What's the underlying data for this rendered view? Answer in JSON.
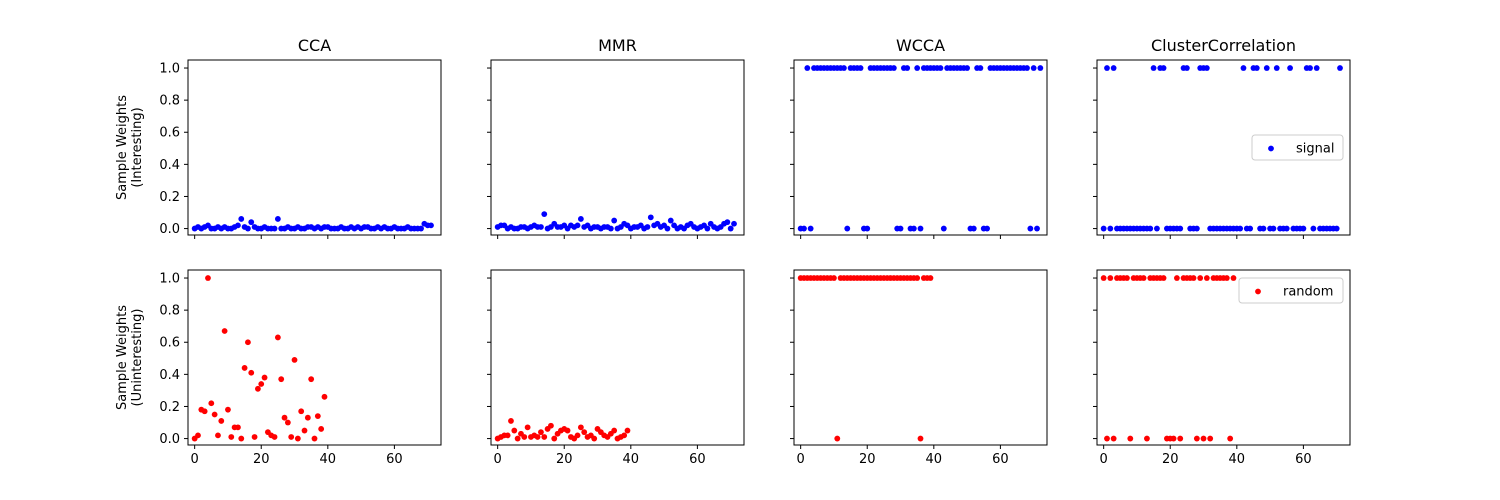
{
  "chart_data": {
    "type": "scatter",
    "titles": [
      "CCA",
      "MMR",
      "WCCA",
      "ClusterCorrelation"
    ],
    "row_ylabels": [
      [
        "Sample Weights",
        "(Interesting)"
      ],
      [
        "Sample Weights",
        "(Uninteresting)"
      ]
    ],
    "xlim": [
      -2,
      74
    ],
    "ylim": [
      -0.04,
      1.05
    ],
    "xticks": [
      0,
      20,
      40,
      60
    ],
    "yticks": [
      0.0,
      0.2,
      0.4,
      0.6,
      0.8,
      1.0
    ],
    "ytick_labels": [
      "0.0",
      "0.2",
      "0.4",
      "0.6",
      "0.8",
      "1.0"
    ],
    "legend": {
      "signal": {
        "label": "signal",
        "color": "#0000ff",
        "placement": "center-right"
      },
      "random": {
        "label": "random",
        "color": "#ff0000",
        "placement": "upper-right"
      }
    },
    "rows": [
      {
        "name": "signal",
        "color": "#0000ff",
        "panels": [
          {
            "title": "CCA",
            "x_start": 0,
            "values": [
              0.0,
              0.01,
              0.0,
              0.01,
              0.02,
              0.0,
              0.0,
              0.01,
              0.0,
              0.01,
              0.0,
              0.0,
              0.01,
              0.02,
              0.06,
              0.01,
              0.0,
              0.04,
              0.01,
              0.0,
              0.0,
              0.01,
              0.0,
              0.0,
              0.0,
              0.06,
              0.0,
              0.0,
              0.01,
              0.0,
              0.0,
              0.01,
              0.0,
              0.0,
              0.01,
              0.01,
              0.0,
              0.01,
              0.0,
              0.01,
              0.01,
              0.0,
              0.0,
              0.0,
              0.01,
              0.0,
              0.0,
              0.01,
              0.0,
              0.01,
              0.0,
              0.01,
              0.01,
              0.0,
              0.0,
              0.01,
              0.0,
              0.01,
              0.0,
              0.0,
              0.01,
              0.0,
              0.0,
              0.0,
              0.01,
              0.0,
              0.0,
              0.0,
              0.0,
              0.03,
              0.02,
              0.02
            ]
          },
          {
            "title": "MMR",
            "x_start": 0,
            "values": [
              0.01,
              0.02,
              0.02,
              0.0,
              0.01,
              0.0,
              0.0,
              0.01,
              0.01,
              0.0,
              0.01,
              0.02,
              0.01,
              0.01,
              0.09,
              0.0,
              0.01,
              0.03,
              0.01,
              0.01,
              0.02,
              0.0,
              0.02,
              0.01,
              0.02,
              0.06,
              0.01,
              0.02,
              0.0,
              0.01,
              0.01,
              0.0,
              0.01,
              0.01,
              0.0,
              0.05,
              0.0,
              0.01,
              0.03,
              0.02,
              0.0,
              0.01,
              0.01,
              0.02,
              0.0,
              0.01,
              0.07,
              0.02,
              0.03,
              0.01,
              0.02,
              0.0,
              0.05,
              0.02,
              0.0,
              0.01,
              0.0,
              0.02,
              0.03,
              0.01,
              0.0,
              0.01,
              0.02,
              0.0,
              0.03,
              0.01,
              0.0,
              0.01,
              0.03,
              0.04,
              0.0,
              0.03
            ]
          },
          {
            "title": "WCCA",
            "x_start": 0,
            "values": [
              0,
              0,
              1,
              0,
              1,
              1,
              1,
              1,
              1,
              1,
              1,
              1,
              1,
              1,
              0,
              1,
              1,
              1,
              1,
              0,
              0,
              1,
              1,
              1,
              1,
              1,
              1,
              1,
              1,
              0,
              0,
              1,
              1,
              0,
              0,
              1,
              0,
              1,
              1,
              1,
              1,
              1,
              1,
              0,
              1,
              1,
              1,
              1,
              1,
              1,
              1,
              0,
              0,
              1,
              1,
              0,
              0,
              1,
              1,
              1,
              1,
              1,
              1,
              1,
              1,
              1,
              1,
              1,
              1,
              0,
              1,
              0,
              1
            ]
          },
          {
            "title": "ClusterCorrelation",
            "x_start": 0,
            "values": [
              0,
              1,
              0,
              1,
              0,
              0,
              0,
              0,
              0,
              0,
              0,
              0,
              0,
              0,
              0,
              1,
              0,
              1,
              1,
              0,
              0,
              0,
              0,
              0,
              1,
              1,
              0,
              0,
              0,
              1,
              1,
              1,
              0,
              0,
              0,
              0,
              0,
              0,
              0,
              0,
              0,
              0,
              1,
              0,
              0,
              1,
              1,
              0,
              0,
              1,
              0,
              0,
              1,
              0,
              0,
              0,
              1,
              0,
              0,
              0,
              0,
              1,
              1,
              0,
              1,
              0,
              0,
              0,
              0,
              0,
              0,
              1
            ]
          }
        ]
      },
      {
        "name": "random",
        "color": "#ff0000",
        "panels": [
          {
            "title": "CCA",
            "x_start": 0,
            "values": [
              0.0,
              0.02,
              0.18,
              0.17,
              1.0,
              0.22,
              0.15,
              0.02,
              0.11,
              0.67,
              0.18,
              0.01,
              0.07,
              0.07,
              0.0,
              0.44,
              0.6,
              0.41,
              0.01,
              0.31,
              0.34,
              0.38,
              0.04,
              0.02,
              0.01,
              0.63,
              0.37,
              0.13,
              0.1,
              0.01,
              0.49,
              0.0,
              0.17,
              0.05,
              0.13,
              0.37,
              0.0,
              0.14,
              0.06,
              0.26
            ]
          },
          {
            "title": "MMR",
            "x_start": 0,
            "values": [
              0.0,
              0.01,
              0.02,
              0.02,
              0.11,
              0.05,
              0.0,
              0.03,
              0.01,
              0.07,
              0.01,
              0.02,
              0.01,
              0.04,
              0.01,
              0.06,
              0.08,
              0.0,
              0.03,
              0.05,
              0.06,
              0.05,
              0.01,
              0.0,
              0.02,
              0.07,
              0.04,
              0.01,
              0.02,
              0.0,
              0.06,
              0.04,
              0.02,
              0.01,
              0.03,
              0.05,
              0.0,
              0.01,
              0.02,
              0.05
            ]
          },
          {
            "title": "WCCA",
            "x_start": 0,
            "values": [
              1,
              1,
              1,
              1,
              1,
              1,
              1,
              1,
              1,
              1,
              1,
              0,
              1,
              1,
              1,
              1,
              1,
              1,
              1,
              1,
              1,
              1,
              1,
              1,
              1,
              1,
              1,
              1,
              1,
              1,
              1,
              1,
              1,
              1,
              1,
              1,
              0,
              1,
              1,
              1
            ]
          },
          {
            "title": "ClusterCorrelation",
            "x_start": 0,
            "values": [
              1,
              0,
              1,
              0,
              1,
              1,
              1,
              1,
              0,
              1,
              1,
              1,
              1,
              0,
              1,
              1,
              1,
              1,
              1,
              0,
              0,
              0,
              1,
              0,
              1,
              1,
              1,
              1,
              0,
              1,
              0,
              1,
              0,
              1,
              1,
              1,
              1,
              1,
              0,
              1
            ]
          }
        ]
      }
    ]
  }
}
